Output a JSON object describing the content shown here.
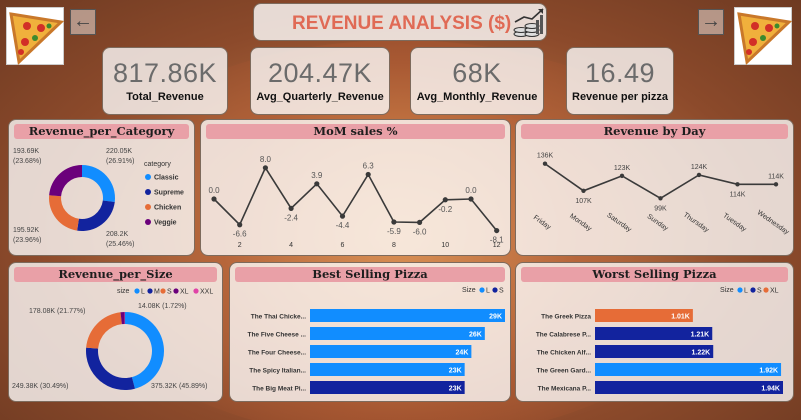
{
  "header": {
    "title": "REVENUE ANALYSIS ($)"
  },
  "colors": {
    "blue": "#118dff",
    "navy": "#12239e",
    "orange": "#e66c37",
    "purple": "#6b007b",
    "magenta": "#e044a7"
  },
  "kpis": [
    {
      "value": "817.86K",
      "label": "Total_Revenue"
    },
    {
      "value": "204.47K",
      "label": "Avg_Quarterly_Revenue"
    },
    {
      "value": "68K",
      "label": "Avg_Monthly_Revenue"
    },
    {
      "value": "16.49",
      "label": "Revenue per pizza"
    }
  ],
  "charts": {
    "category": {
      "title": "Revenue_per_Category",
      "legend_title": "category",
      "labels": {
        "classic": "220.05K\n(26.91%)",
        "supreme": "208.2K\n(25.46%)",
        "chicken": "195.92K\n(23.96%)",
        "veggie": "193.69K\n(23.68%)"
      }
    },
    "mom": {
      "title": "MoM sales %"
    },
    "day": {
      "title": "Revenue by Day"
    },
    "size": {
      "title": "Revenue_per_Size",
      "legend_title": "size",
      "labels": {
        "l": "375.32K (45.89%)",
        "m": "249.38K (30.49%)",
        "s": "178.08K (21.77%)",
        "xl": "14.08K (1.72%)"
      }
    },
    "best": {
      "title": "Best Selling Pizza",
      "legend_title": "Size"
    },
    "worst": {
      "title": "Worst Selling Pizza",
      "legend_title": "Size"
    }
  },
  "chart_data": [
    {
      "type": "pie",
      "title": "Revenue_per_Category",
      "legend_position": "right",
      "categories": [
        "Classic",
        "Supreme",
        "Chicken",
        "Veggie"
      ],
      "values": [
        220.05,
        208.2,
        195.92,
        193.69
      ],
      "percent": [
        26.91,
        25.46,
        23.96,
        23.68
      ],
      "unit": "K"
    },
    {
      "type": "line",
      "title": "MoM sales %",
      "x": [
        1,
        2,
        3,
        4,
        5,
        6,
        7,
        8,
        9,
        10,
        11,
        12
      ],
      "x_ticks": [
        2,
        4,
        6,
        8,
        10,
        12
      ],
      "values": [
        0.0,
        -6.6,
        8.0,
        -2.4,
        3.9,
        -4.4,
        6.3,
        -5.9,
        -6.0,
        -0.2,
        0.0,
        -8.1
      ],
      "labels": [
        "0.0",
        "-6.6",
        "8.0",
        "-2.4",
        "3.9",
        "-4.4",
        "6.3",
        "-5.9",
        "-6.0",
        "-0.2",
        "0.0",
        "-8.1"
      ],
      "ylim": [
        -10,
        10
      ]
    },
    {
      "type": "line",
      "title": "Revenue by Day",
      "categories": [
        "Friday",
        "Monday",
        "Saturday",
        "Sunday",
        "Thursday",
        "Tuesday",
        "Wednesday"
      ],
      "values": [
        136,
        107,
        123,
        99,
        124,
        114,
        114
      ],
      "labels": [
        "136K",
        "107K",
        "123K",
        "99K",
        "124K",
        "114K",
        "114K"
      ],
      "unit": "K"
    },
    {
      "type": "pie",
      "title": "Revenue_per_Size",
      "legend_position": "top",
      "categories": [
        "L",
        "M",
        "S",
        "XL",
        "XXL"
      ],
      "values": [
        375.32,
        249.38,
        178.08,
        14.08,
        1.0
      ],
      "percent": [
        45.89,
        30.49,
        21.77,
        1.72,
        0.12
      ],
      "unit": "K"
    },
    {
      "type": "bar",
      "title": "Best Selling Pizza",
      "orientation": "horizontal",
      "legend_title": "Size",
      "legend_entries": [
        "L",
        "S"
      ],
      "categories": [
        "The Thai Chicke...",
        "The Five Cheese ...",
        "The Four Cheese...",
        "The Spicy Italian...",
        "The Big Meat Pi..."
      ],
      "values": [
        29,
        26,
        24,
        23,
        23
      ],
      "labels": [
        "29K",
        "26K",
        "24K",
        "23K",
        "23K"
      ],
      "sizes": [
        "L",
        "L",
        "L",
        "L",
        "S"
      ],
      "unit": "K"
    },
    {
      "type": "bar",
      "title": "Worst Selling Pizza",
      "orientation": "horizontal",
      "legend_title": "Size",
      "legend_entries": [
        "L",
        "S",
        "XL"
      ],
      "categories": [
        "The Greek Pizza",
        "The Calabrese P...",
        "The Chicken Alf...",
        "The Green Gard...",
        "The Mexicana P..."
      ],
      "values": [
        1.01,
        1.21,
        1.22,
        1.92,
        1.94
      ],
      "labels": [
        "1.01K",
        "1.21K",
        "1.22K",
        "1.92K",
        "1.94K"
      ],
      "sizes": [
        "XL",
        "S",
        "S",
        "L",
        "S"
      ],
      "unit": "K"
    }
  ]
}
